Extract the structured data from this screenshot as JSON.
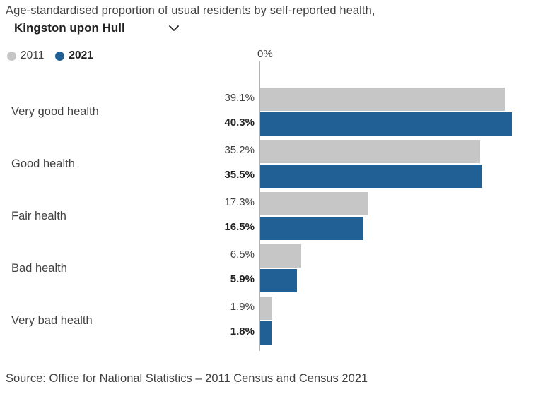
{
  "header": {
    "title": "Age-standardised proportion of usual residents by self-reported health,",
    "region_selector": {
      "value": "Kingston upon Hull",
      "icon": "chevron-down-icon"
    }
  },
  "legend": [
    {
      "label": "2011",
      "color": "#c6c6c6",
      "bold": false
    },
    {
      "label": "2021",
      "color": "#206095",
      "bold": true
    }
  ],
  "chart_data": {
    "type": "bar",
    "orientation": "horizontal",
    "title": "Age-standardised proportion of usual residents by self-reported health, Kingston upon Hull",
    "categories": [
      "Very good health",
      "Good health",
      "Fair health",
      "Bad health",
      "Very bad health"
    ],
    "series": [
      {
        "name": "2011",
        "color": "#c6c6c6",
        "values": [
          39.1,
          35.2,
          17.3,
          6.5,
          1.9
        ]
      },
      {
        "name": "2021",
        "color": "#206095",
        "values": [
          40.3,
          35.5,
          16.5,
          5.9,
          1.8
        ]
      }
    ],
    "value_suffix": "%",
    "axis_tick_label": "0%",
    "xlim": [
      0,
      45
    ],
    "data_labels": true,
    "grid": false,
    "legend_position": "top-left"
  },
  "colors": {
    "bar_2011": "#c6c6c6",
    "bar_2021": "#206095",
    "axis_line": "#b3b3b3",
    "text": "#414042",
    "text_strong": "#222222"
  },
  "source": "Source: Office for National Statistics – 2011 Census and Census 2021"
}
